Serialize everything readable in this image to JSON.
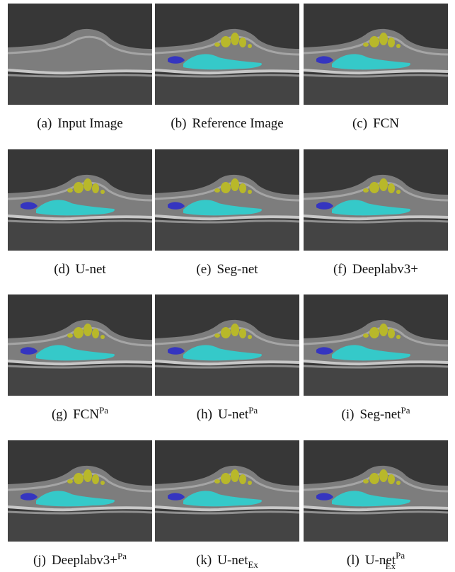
{
  "panels": [
    {
      "label": "(a)",
      "name": "Input Image"
    },
    {
      "label": "(b)",
      "name": "Reference Image"
    },
    {
      "label": "(c)",
      "name": "FCN"
    },
    {
      "label": "(d)",
      "name": "U-net"
    },
    {
      "label": "(e)",
      "name": "Seg-net"
    },
    {
      "label": "(f)",
      "name": "Deeplabv3+"
    },
    {
      "label": "(g)",
      "name": "FCN",
      "sup": "Pa"
    },
    {
      "label": "(h)",
      "name": "U-net",
      "sup": "Pa"
    },
    {
      "label": "(i)",
      "name": "Seg-net",
      "sup": "Pa"
    },
    {
      "label": "(j)",
      "name": "Deeplabv3+",
      "sup": "Pa"
    },
    {
      "label": "(k)",
      "name": "U-net",
      "sub": "Ex"
    },
    {
      "label": "(l)",
      "name": "U-net",
      "sup": "Pa",
      "sub": "Ex"
    }
  ]
}
